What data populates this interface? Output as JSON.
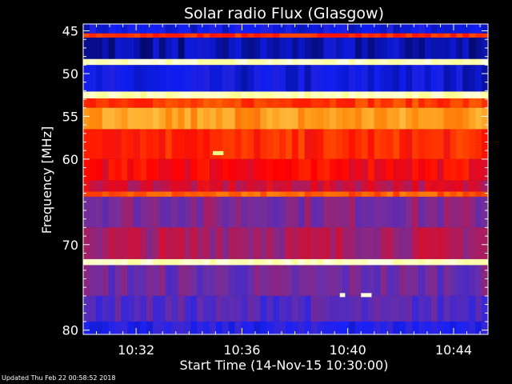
{
  "chart_data": {
    "type": "heatmap",
    "title": "Solar radio Flux (Glasgow)",
    "xlabel": "Start Time (14-Nov-15 10:30:00)",
    "ylabel": "Frequency [MHz]",
    "x_unit": "minutes after 10:30:00",
    "xlim": [
      0,
      15.3
    ],
    "ylim": [
      80.5,
      44.2
    ],
    "x_ticks": [
      {
        "value": 2,
        "label": "10:32"
      },
      {
        "value": 6,
        "label": "10:36"
      },
      {
        "value": 10,
        "label": "10:40"
      },
      {
        "value": 14,
        "label": "10:44"
      }
    ],
    "y_ticks": [
      {
        "value": 45,
        "label": "45"
      },
      {
        "value": 50,
        "label": "50"
      },
      {
        "value": 55,
        "label": "55"
      },
      {
        "value": 60,
        "label": "60"
      },
      {
        "value": 70,
        "label": "70"
      },
      {
        "value": 80,
        "label": "80"
      }
    ],
    "colormap": [
      "#000030",
      "#1020ff",
      "#7030a0",
      "#ff0000",
      "#ff8000",
      "#ffff80",
      "#ffffff"
    ],
    "bands": [
      {
        "f0": 44.2,
        "f1": 45.3,
        "level": 0.15
      },
      {
        "f0": 45.3,
        "f1": 45.8,
        "level": 0.55
      },
      {
        "f0": 45.8,
        "f1": 48.3,
        "level": 0.1
      },
      {
        "f0": 48.3,
        "f1": 49.0,
        "level": 0.92
      },
      {
        "f0": 49.0,
        "f1": 52.1,
        "level": 0.14
      },
      {
        "f0": 52.1,
        "f1": 52.9,
        "level": 0.9
      },
      {
        "f0": 52.9,
        "f1": 54.0,
        "level": 0.58
      },
      {
        "f0": 54.0,
        "f1": 56.5,
        "level": 0.7
      },
      {
        "f0": 56.5,
        "f1": 60.0,
        "level": 0.55
      },
      {
        "f0": 60.0,
        "f1": 62.5,
        "level": 0.5
      },
      {
        "f0": 62.5,
        "f1": 63.8,
        "level": 0.44
      },
      {
        "f0": 63.8,
        "f1": 64.4,
        "level": 0.62
      },
      {
        "f0": 64.4,
        "f1": 68.0,
        "level": 0.35
      },
      {
        "f0": 68.0,
        "f1": 71.7,
        "level": 0.4
      },
      {
        "f0": 71.7,
        "f1": 72.4,
        "level": 0.92
      },
      {
        "f0": 72.4,
        "f1": 76.0,
        "level": 0.32
      },
      {
        "f0": 76.0,
        "f1": 79.0,
        "level": 0.28
      },
      {
        "f0": 79.0,
        "f1": 80.5,
        "level": 0.2
      }
    ],
    "bursts": [
      {
        "t0": 4.9,
        "t1": 5.3,
        "f": 59.3,
        "level": 0.85
      },
      {
        "t0": 9.7,
        "t1": 9.9,
        "f": 75.9,
        "level": 0.95
      },
      {
        "t0": 10.5,
        "t1": 10.9,
        "f": 75.9,
        "level": 0.95
      }
    ],
    "grid": false
  },
  "footer": {
    "updated": "Updated Thu Feb 22 00:58:52 2018"
  }
}
